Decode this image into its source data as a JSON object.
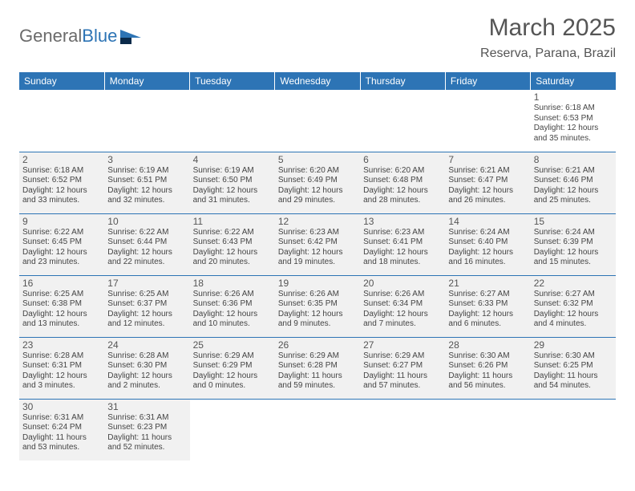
{
  "brand": {
    "word1": "General",
    "word2": "Blue"
  },
  "header": {
    "month_title": "March 2025",
    "location": "Reserva, Parana, Brazil"
  },
  "colors": {
    "header_bg": "#2d74b5",
    "header_fg": "#ffffff",
    "cell_fill": "#f1f1f1",
    "row_border": "#2d74b5",
    "text": "#444444",
    "brand_gray": "#6b6b6b",
    "brand_blue": "#2d74b5"
  },
  "weekdays": [
    "Sunday",
    "Monday",
    "Tuesday",
    "Wednesday",
    "Thursday",
    "Friday",
    "Saturday"
  ],
  "weeks": [
    [
      null,
      null,
      null,
      null,
      null,
      null,
      {
        "n": "1",
        "sr": "Sunrise: 6:18 AM",
        "ss": "Sunset: 6:53 PM",
        "dl": "Daylight: 12 hours and 35 minutes."
      }
    ],
    [
      {
        "n": "2",
        "sr": "Sunrise: 6:18 AM",
        "ss": "Sunset: 6:52 PM",
        "dl": "Daylight: 12 hours and 33 minutes."
      },
      {
        "n": "3",
        "sr": "Sunrise: 6:19 AM",
        "ss": "Sunset: 6:51 PM",
        "dl": "Daylight: 12 hours and 32 minutes."
      },
      {
        "n": "4",
        "sr": "Sunrise: 6:19 AM",
        "ss": "Sunset: 6:50 PM",
        "dl": "Daylight: 12 hours and 31 minutes."
      },
      {
        "n": "5",
        "sr": "Sunrise: 6:20 AM",
        "ss": "Sunset: 6:49 PM",
        "dl": "Daylight: 12 hours and 29 minutes."
      },
      {
        "n": "6",
        "sr": "Sunrise: 6:20 AM",
        "ss": "Sunset: 6:48 PM",
        "dl": "Daylight: 12 hours and 28 minutes."
      },
      {
        "n": "7",
        "sr": "Sunrise: 6:21 AM",
        "ss": "Sunset: 6:47 PM",
        "dl": "Daylight: 12 hours and 26 minutes."
      },
      {
        "n": "8",
        "sr": "Sunrise: 6:21 AM",
        "ss": "Sunset: 6:46 PM",
        "dl": "Daylight: 12 hours and 25 minutes."
      }
    ],
    [
      {
        "n": "9",
        "sr": "Sunrise: 6:22 AM",
        "ss": "Sunset: 6:45 PM",
        "dl": "Daylight: 12 hours and 23 minutes."
      },
      {
        "n": "10",
        "sr": "Sunrise: 6:22 AM",
        "ss": "Sunset: 6:44 PM",
        "dl": "Daylight: 12 hours and 22 minutes."
      },
      {
        "n": "11",
        "sr": "Sunrise: 6:22 AM",
        "ss": "Sunset: 6:43 PM",
        "dl": "Daylight: 12 hours and 20 minutes."
      },
      {
        "n": "12",
        "sr": "Sunrise: 6:23 AM",
        "ss": "Sunset: 6:42 PM",
        "dl": "Daylight: 12 hours and 19 minutes."
      },
      {
        "n": "13",
        "sr": "Sunrise: 6:23 AM",
        "ss": "Sunset: 6:41 PM",
        "dl": "Daylight: 12 hours and 18 minutes."
      },
      {
        "n": "14",
        "sr": "Sunrise: 6:24 AM",
        "ss": "Sunset: 6:40 PM",
        "dl": "Daylight: 12 hours and 16 minutes."
      },
      {
        "n": "15",
        "sr": "Sunrise: 6:24 AM",
        "ss": "Sunset: 6:39 PM",
        "dl": "Daylight: 12 hours and 15 minutes."
      }
    ],
    [
      {
        "n": "16",
        "sr": "Sunrise: 6:25 AM",
        "ss": "Sunset: 6:38 PM",
        "dl": "Daylight: 12 hours and 13 minutes."
      },
      {
        "n": "17",
        "sr": "Sunrise: 6:25 AM",
        "ss": "Sunset: 6:37 PM",
        "dl": "Daylight: 12 hours and 12 minutes."
      },
      {
        "n": "18",
        "sr": "Sunrise: 6:26 AM",
        "ss": "Sunset: 6:36 PM",
        "dl": "Daylight: 12 hours and 10 minutes."
      },
      {
        "n": "19",
        "sr": "Sunrise: 6:26 AM",
        "ss": "Sunset: 6:35 PM",
        "dl": "Daylight: 12 hours and 9 minutes."
      },
      {
        "n": "20",
        "sr": "Sunrise: 6:26 AM",
        "ss": "Sunset: 6:34 PM",
        "dl": "Daylight: 12 hours and 7 minutes."
      },
      {
        "n": "21",
        "sr": "Sunrise: 6:27 AM",
        "ss": "Sunset: 6:33 PM",
        "dl": "Daylight: 12 hours and 6 minutes."
      },
      {
        "n": "22",
        "sr": "Sunrise: 6:27 AM",
        "ss": "Sunset: 6:32 PM",
        "dl": "Daylight: 12 hours and 4 minutes."
      }
    ],
    [
      {
        "n": "23",
        "sr": "Sunrise: 6:28 AM",
        "ss": "Sunset: 6:31 PM",
        "dl": "Daylight: 12 hours and 3 minutes."
      },
      {
        "n": "24",
        "sr": "Sunrise: 6:28 AM",
        "ss": "Sunset: 6:30 PM",
        "dl": "Daylight: 12 hours and 2 minutes."
      },
      {
        "n": "25",
        "sr": "Sunrise: 6:29 AM",
        "ss": "Sunset: 6:29 PM",
        "dl": "Daylight: 12 hours and 0 minutes."
      },
      {
        "n": "26",
        "sr": "Sunrise: 6:29 AM",
        "ss": "Sunset: 6:28 PM",
        "dl": "Daylight: 11 hours and 59 minutes."
      },
      {
        "n": "27",
        "sr": "Sunrise: 6:29 AM",
        "ss": "Sunset: 6:27 PM",
        "dl": "Daylight: 11 hours and 57 minutes."
      },
      {
        "n": "28",
        "sr": "Sunrise: 6:30 AM",
        "ss": "Sunset: 6:26 PM",
        "dl": "Daylight: 11 hours and 56 minutes."
      },
      {
        "n": "29",
        "sr": "Sunrise: 6:30 AM",
        "ss": "Sunset: 6:25 PM",
        "dl": "Daylight: 11 hours and 54 minutes."
      }
    ],
    [
      {
        "n": "30",
        "sr": "Sunrise: 6:31 AM",
        "ss": "Sunset: 6:24 PM",
        "dl": "Daylight: 11 hours and 53 minutes."
      },
      {
        "n": "31",
        "sr": "Sunrise: 6:31 AM",
        "ss": "Sunset: 6:23 PM",
        "dl": "Daylight: 11 hours and 52 minutes."
      },
      null,
      null,
      null,
      null,
      null
    ]
  ]
}
